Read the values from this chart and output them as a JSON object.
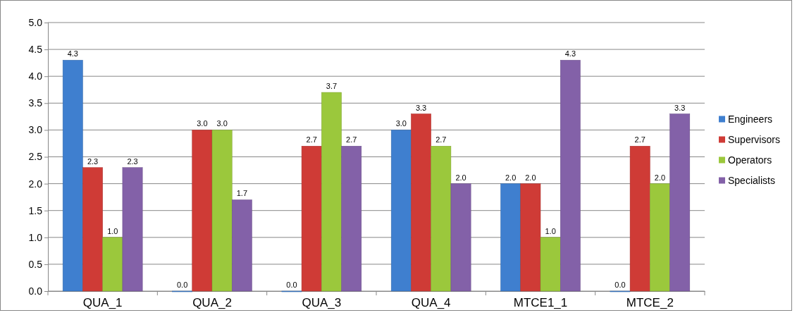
{
  "chart_data": {
    "type": "bar",
    "categories": [
      "QUA_1",
      "QUA_2",
      "QUA_3",
      "QUA_4",
      "MTCE1_1",
      "MTCE_2"
    ],
    "series": [
      {
        "name": "Engineers",
        "color": "#3f7fcf",
        "values": [
          4.3,
          0.0,
          0.0,
          3.0,
          2.0,
          0.0
        ],
        "value_labels": [
          "4.3",
          "0.0",
          "0.0",
          "3.0",
          "2.0",
          "0.0"
        ]
      },
      {
        "name": "Supervisors",
        "color": "#cf3b36",
        "values": [
          2.3,
          3.0,
          2.7,
          3.3,
          2.0,
          2.7
        ],
        "value_labels": [
          "2.3",
          "3.0",
          "2.7",
          "3.3",
          "2.0",
          "2.7"
        ]
      },
      {
        "name": "Operators",
        "color": "#9bc83c",
        "values": [
          1.0,
          3.0,
          3.7,
          2.7,
          1.0,
          2.0
        ],
        "value_labels": [
          "1.0",
          "3.0",
          "3.7",
          "2.7",
          "1.0",
          "2.0"
        ]
      },
      {
        "name": "Specialists",
        "color": "#8361a8",
        "values": [
          2.3,
          1.7,
          2.7,
          2.0,
          4.3,
          3.3
        ],
        "value_labels": [
          "2.3",
          "1.7",
          "2.7",
          "2.0",
          "4.3",
          "3.3"
        ]
      }
    ],
    "ylim": [
      0,
      5
    ],
    "yticks": [
      {
        "value": 0,
        "label": "0.0"
      },
      {
        "value": 0.5,
        "label": "0.5"
      },
      {
        "value": 1,
        "label": "1.0"
      },
      {
        "value": 1.5,
        "label": "1.5"
      },
      {
        "value": 2,
        "label": "2.0"
      },
      {
        "value": 2.5,
        "label": "2.5"
      },
      {
        "value": 3,
        "label": "3.0"
      },
      {
        "value": 3.5,
        "label": "3.5"
      },
      {
        "value": 4,
        "label": "4.0"
      },
      {
        "value": 4.5,
        "label": "4.5"
      },
      {
        "value": 5,
        "label": "5.0"
      }
    ],
    "grid": "y",
    "legend": "right"
  }
}
